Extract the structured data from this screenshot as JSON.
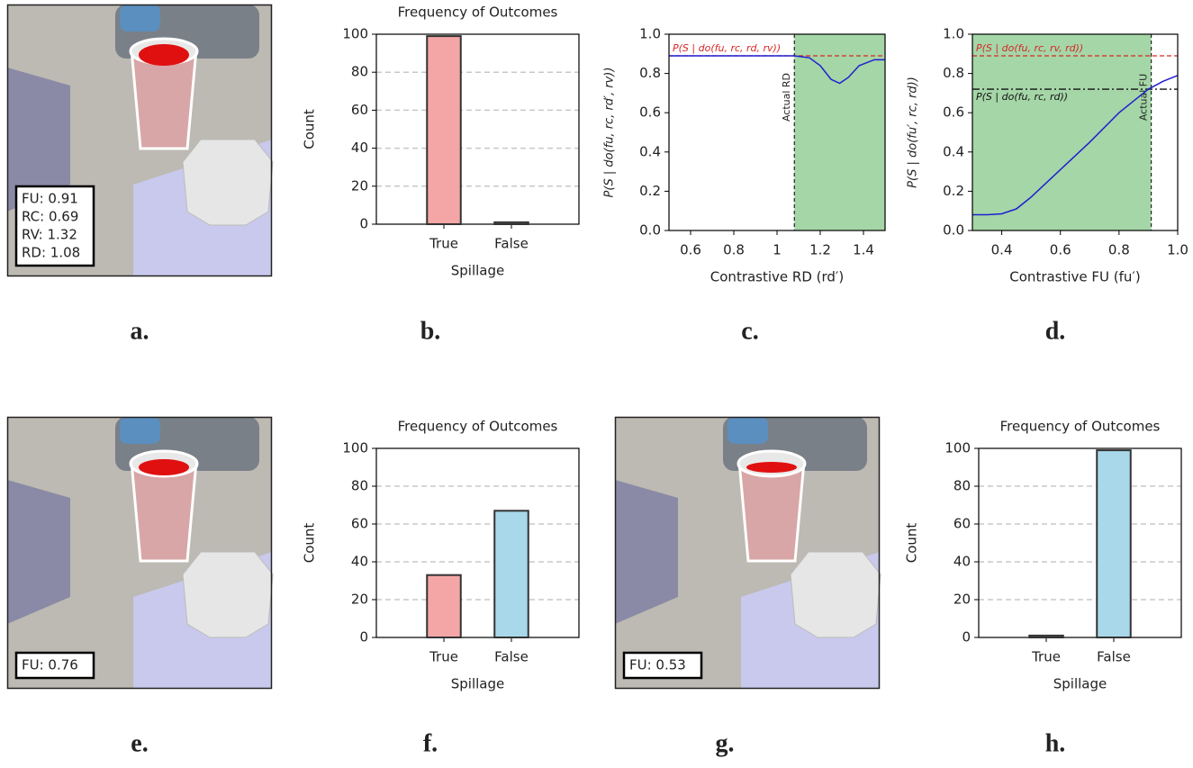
{
  "images": [
    {
      "label": "a.",
      "overlay": [
        "FU: 0.91",
        "RC: 0.69",
        "RV: 1.32",
        "RD: 1.08"
      ]
    },
    {
      "label": "e.",
      "overlay": [
        "FU: 0.76"
      ]
    },
    {
      "label": "g.",
      "overlay": [
        "FU: 0.53"
      ]
    }
  ],
  "chart_data": [
    {
      "type": "bar",
      "panel_label": "b.",
      "title": "Frequency of Outcomes",
      "x_label": "Spillage",
      "y_label": "Count",
      "categories": [
        "True",
        "False"
      ],
      "values": [
        99,
        1
      ],
      "colors": [
        "#f4a6a6",
        "#a8d8ea"
      ],
      "ylim": [
        0,
        100
      ],
      "yticks": [
        0,
        20,
        40,
        60,
        80,
        100
      ],
      "grid": true
    },
    {
      "type": "line",
      "panel_label": "c.",
      "x_label": "Contrastive RD (rd′)",
      "y_label": "P(S | do(fu, rc, rd′, rv))",
      "x": [
        0.5,
        0.7,
        0.9,
        1.08,
        1.15,
        1.2,
        1.25,
        1.29,
        1.33,
        1.38,
        1.45,
        1.5
      ],
      "series": [
        {
          "color": "#1f1fd0",
          "values": [
            0.89,
            0.89,
            0.89,
            0.89,
            0.88,
            0.84,
            0.77,
            0.75,
            0.78,
            0.84,
            0.87,
            0.87
          ]
        }
      ],
      "hlines": [
        {
          "value": 0.89,
          "label": "P(S | do(fu, rc, rd, rv))",
          "color": "#d62728",
          "style": "dashed"
        }
      ],
      "vlines": [
        {
          "value": 1.08,
          "label": "Actual RD",
          "shade": "right"
        }
      ],
      "xlim": [
        0.5,
        1.5
      ],
      "xticks": [
        0.6,
        0.8,
        1.0,
        1.2,
        1.4
      ],
      "ylim": [
        0.0,
        1.0
      ],
      "yticks": [
        {
          "value": 0,
          "label": "0.0"
        },
        0.2,
        0.4,
        0.6,
        0.8,
        {
          "value": 1,
          "label": "1.0"
        }
      ],
      "grid": false
    },
    {
      "type": "line",
      "panel_label": "d.",
      "x_label": "Contrastive FU (fu′)",
      "y_label": "P(S | do(fu′, rc, rd))",
      "x": [
        0.3,
        0.35,
        0.4,
        0.45,
        0.5,
        0.6,
        0.7,
        0.8,
        0.9,
        0.95,
        1.0
      ],
      "series": [
        {
          "color": "#1f1fd0",
          "values": [
            0.08,
            0.08,
            0.085,
            0.11,
            0.17,
            0.31,
            0.45,
            0.6,
            0.72,
            0.76,
            0.79
          ]
        }
      ],
      "hlines": [
        {
          "value": 0.89,
          "label": "P(S | do(fu, rc, rv, rd))",
          "color": "#d62728",
          "style": "dashed"
        },
        {
          "value": 0.72,
          "label": "P(S | do(fu, rc, rd))",
          "color": "#111111",
          "style": "dashdot"
        }
      ],
      "vlines": [
        {
          "value": 0.91,
          "label": "Actual FU",
          "shade": "left"
        }
      ],
      "xlim": [
        0.3,
        1.0
      ],
      "xticks": [
        0.4,
        0.6,
        0.8,
        {
          "value": 1,
          "label": "1.0"
        }
      ],
      "ylim": [
        0.0,
        1.0
      ],
      "yticks": [
        {
          "value": 0,
          "label": "0.0"
        },
        0.2,
        0.4,
        0.6,
        0.8,
        {
          "value": 1,
          "label": "1.0"
        }
      ],
      "grid": false
    },
    {
      "type": "bar",
      "panel_label": "f.",
      "title": "Frequency of Outcomes",
      "x_label": "Spillage",
      "y_label": "Count",
      "categories": [
        "True",
        "False"
      ],
      "values": [
        33,
        67
      ],
      "colors": [
        "#f4a6a6",
        "#a8d8ea"
      ],
      "ylim": [
        0,
        100
      ],
      "yticks": [
        0,
        20,
        40,
        60,
        80,
        100
      ],
      "grid": true
    },
    {
      "type": "bar",
      "panel_label": "h.",
      "title": "Frequency of Outcomes",
      "x_label": "Spillage",
      "y_label": "Count",
      "categories": [
        "True",
        "False"
      ],
      "values": [
        1,
        99
      ],
      "colors": [
        "#f4a6a6",
        "#a8d8ea"
      ],
      "ylim": [
        0,
        100
      ],
      "yticks": [
        0,
        20,
        40,
        60,
        80,
        100
      ],
      "grid": true
    }
  ]
}
